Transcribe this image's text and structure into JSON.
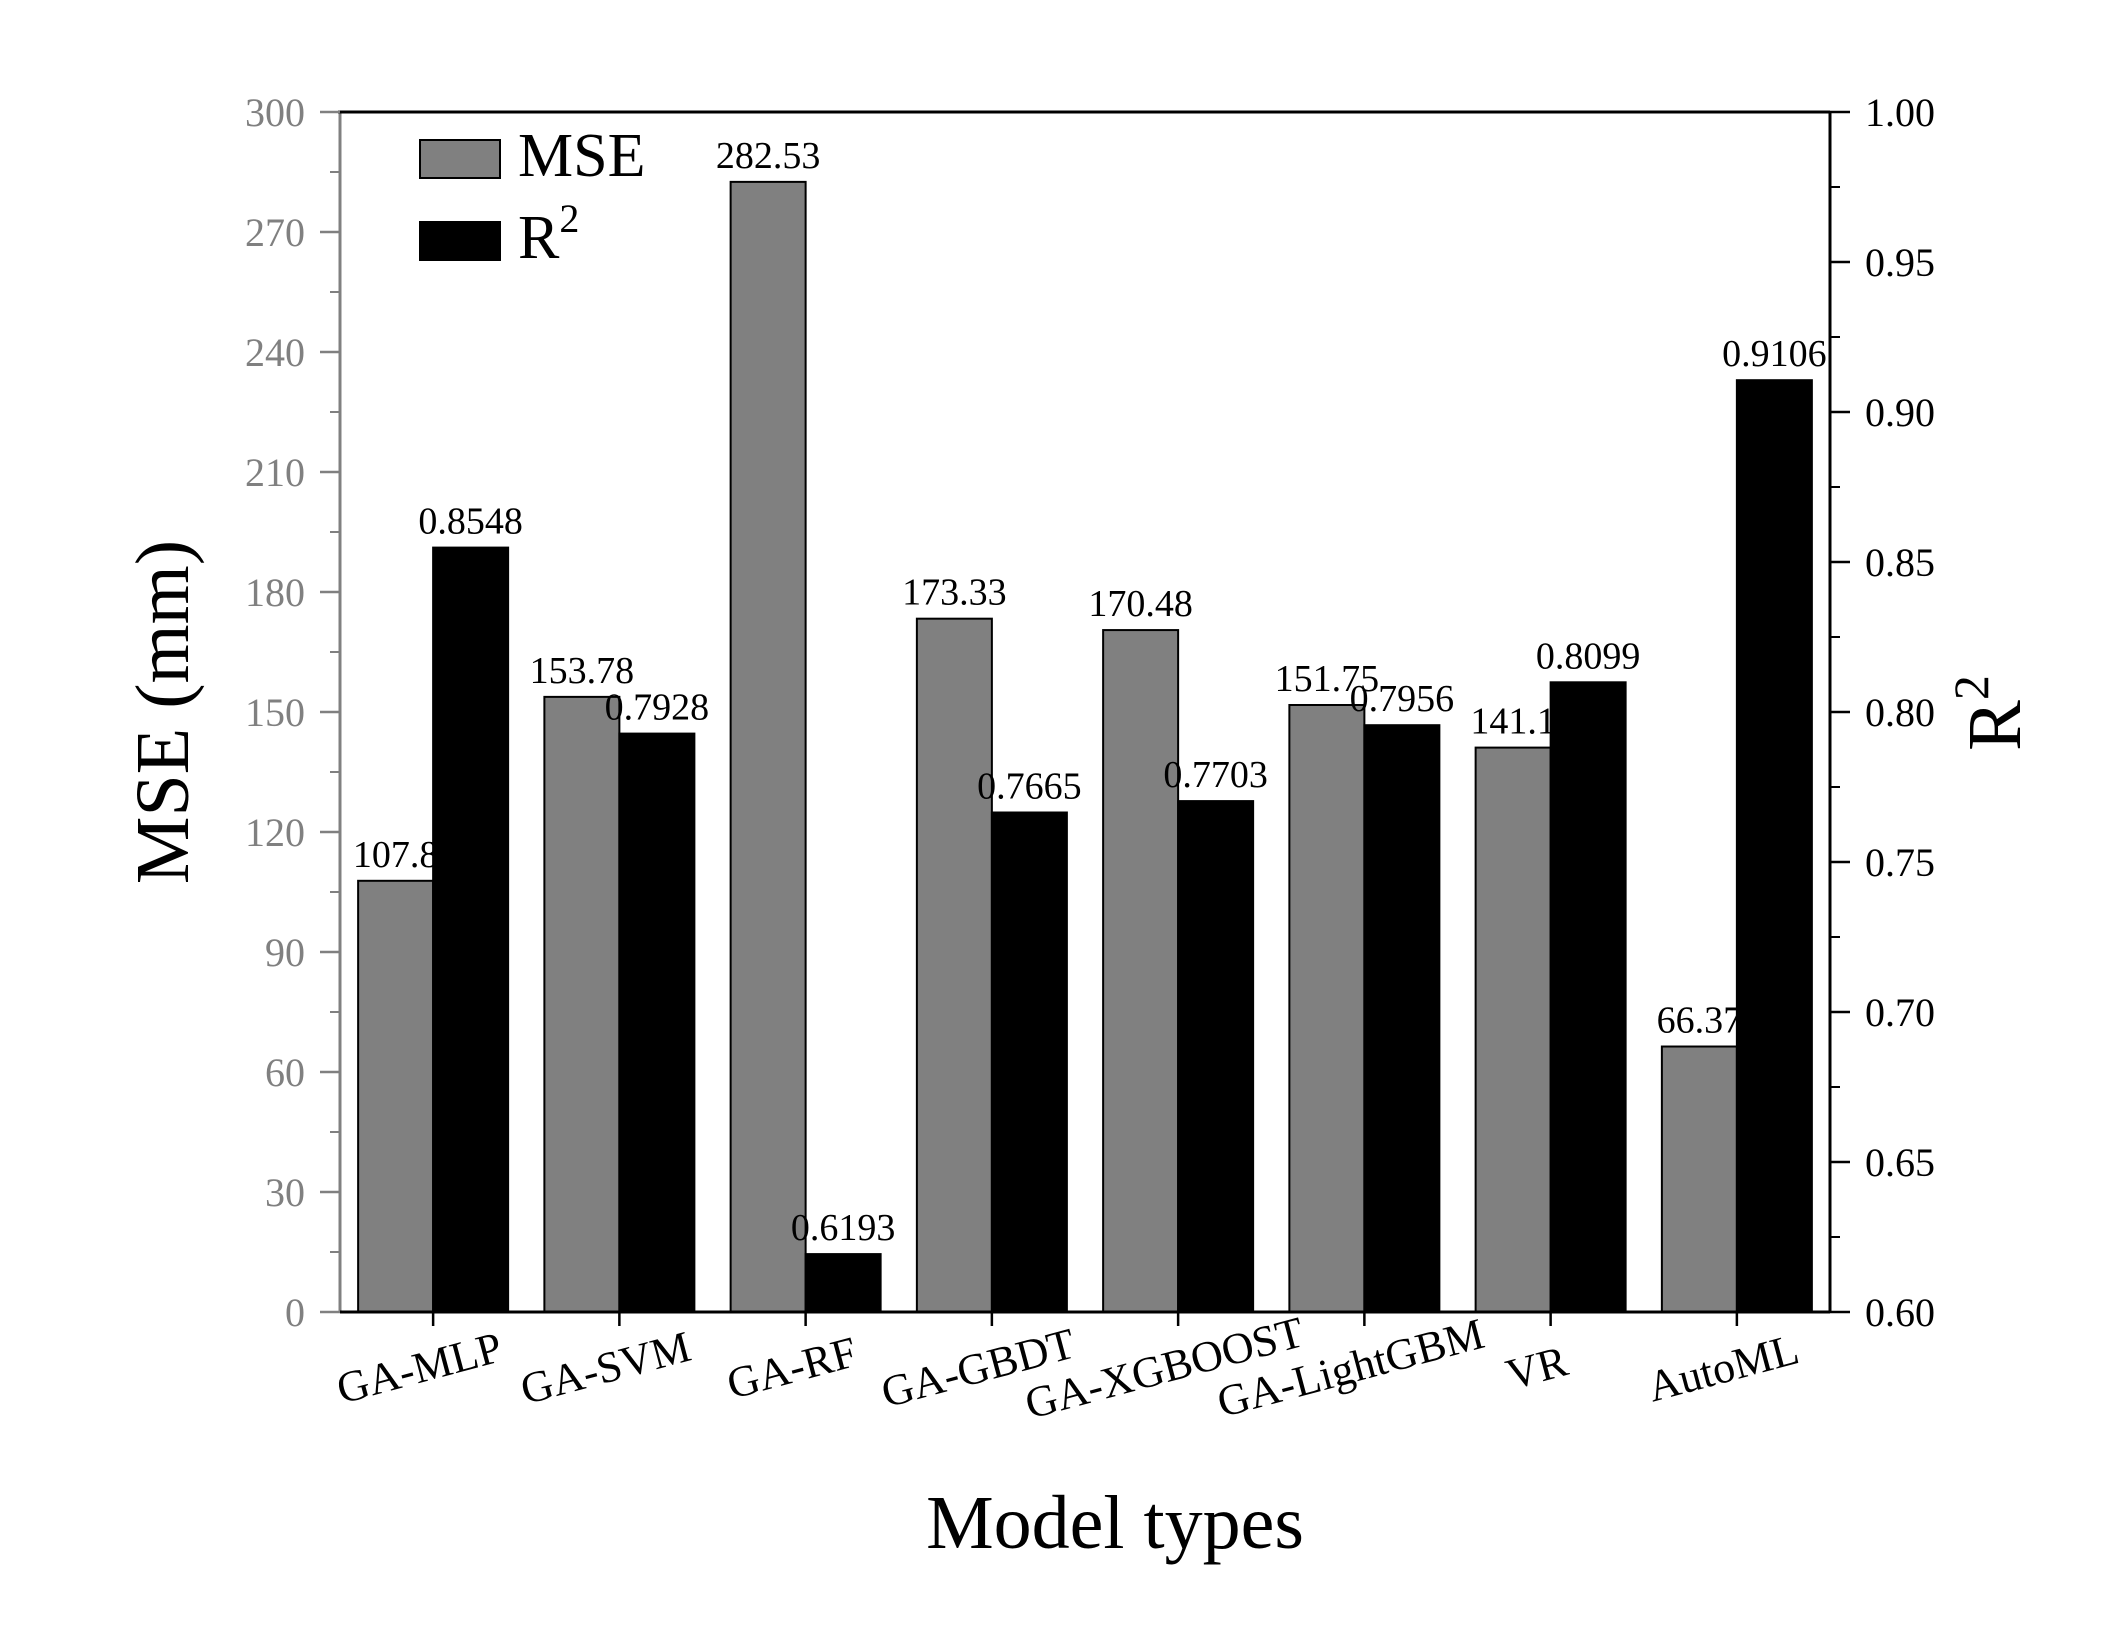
{
  "chart_data": {
    "type": "bar",
    "categories": [
      "GA-MLP",
      "GA-SVM",
      "GA-RF",
      "GA-GBDT",
      "GA-XGBOOST",
      "GA-LightGBM",
      "VR",
      "AutoML"
    ],
    "series": [
      {
        "name": "MSE",
        "axis": "left",
        "color": "#808080",
        "values": [
          107.8,
          153.78,
          282.53,
          173.33,
          170.48,
          151.75,
          141.1,
          66.37
        ],
        "value_labels": [
          "107.8",
          "153.78",
          "282.53",
          "173.33",
          "170.48",
          "151.75",
          "141.1",
          "66.37"
        ]
      },
      {
        "name": "R",
        "name_superscript": "2",
        "axis": "right",
        "color": "#000000",
        "values": [
          0.8548,
          0.7928,
          0.6193,
          0.7665,
          0.7703,
          0.7956,
          0.8099,
          0.9106
        ],
        "value_labels": [
          "0.8548",
          "0.7928",
          "0.6193",
          "0.7665",
          "0.7703",
          "0.7956",
          "0.8099",
          "0.9106"
        ]
      }
    ],
    "xlabel": "Model types",
    "ylabel_left": "MSE (mm)",
    "ylabel_right": "R",
    "ylabel_right_superscript": "2",
    "ylim_left": [
      0,
      300
    ],
    "ylim_right": [
      0.6,
      1.0
    ],
    "yticks_left": [
      0,
      30,
      60,
      90,
      120,
      150,
      180,
      210,
      240,
      270,
      300
    ],
    "yticks_left_labels": [
      "0",
      "30",
      "60",
      "90",
      "120",
      "150",
      "180",
      "210",
      "240",
      "270",
      "300"
    ],
    "yticks_right": [
      0.6,
      0.65,
      0.7,
      0.75,
      0.8,
      0.85,
      0.9,
      0.95,
      1.0
    ],
    "yticks_right_labels": [
      "0.60",
      "0.65",
      "0.70",
      "0.75",
      "0.80",
      "0.85",
      "0.90",
      "0.95",
      "1.00"
    ],
    "left_axis_color": "#808080",
    "right_axis_color": "#000000",
    "legend_position": "top-left",
    "grid": false
  }
}
